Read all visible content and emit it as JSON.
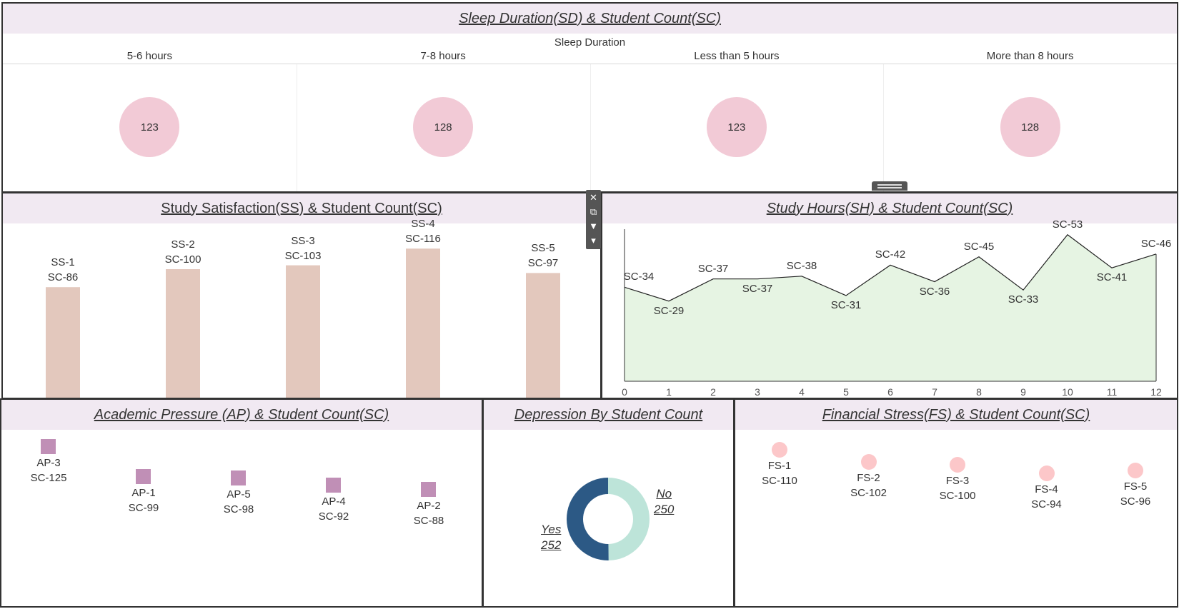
{
  "colors": {
    "title_bar": "#f1e9f2",
    "sleep_circle": "#f2cad6",
    "ss_bar": "#e3c8bd",
    "sh_area_fill": "#e6f4e3",
    "ap_square": "#c08fb6",
    "fs_circle": "#fcc7c9",
    "dep_yes": "#2c5985",
    "dep_no": "#bde4d9"
  },
  "toolbar": {
    "close_icon": "✕",
    "popout_icon": "⧉",
    "filter_icon": "▼",
    "more_icon": "▾"
  },
  "chart_data": [
    {
      "id": "sleep",
      "type": "scatter",
      "title": "Sleep Duration(SD) & Student Count(SC)",
      "header": "Sleep Duration",
      "categories": [
        "5-6 hours",
        "7-8 hours",
        "Less than 5 hours",
        "More than 8 hours"
      ],
      "values": [
        123,
        128,
        123,
        128
      ]
    },
    {
      "id": "ss",
      "type": "bar",
      "title": "Study Satisfaction(SS) & Student Count(SC)",
      "categories": [
        "SS-1",
        "SS-2",
        "SS-3",
        "SS-4",
        "SS-5"
      ],
      "values": [
        86,
        100,
        103,
        116,
        97
      ],
      "value_labels": [
        "SC-86",
        "SC-100",
        "SC-103",
        "SC-116",
        "SC-97"
      ],
      "ylim": [
        0,
        130
      ]
    },
    {
      "id": "sh",
      "type": "area",
      "title": "Study Hours(SH) & Student Count(SC)",
      "x": [
        0,
        1,
        2,
        3,
        4,
        5,
        6,
        7,
        8,
        9,
        10,
        11,
        12
      ],
      "values": [
        34,
        29,
        37,
        37,
        38,
        31,
        42,
        36,
        45,
        33,
        53,
        41,
        46
      ],
      "value_labels": [
        "SC-34",
        "SC-29",
        "SC-37",
        "SC-37",
        "SC-38",
        "SC-31",
        "SC-42",
        "SC-36",
        "SC-45",
        "SC-33",
        "SC-53",
        "SC-41",
        "SC-46"
      ],
      "ylim": [
        0,
        55
      ]
    },
    {
      "id": "ap",
      "type": "scatter",
      "title": "Academic Pressure (AP) & Student Count(SC)",
      "categories": [
        "AP-3",
        "AP-1",
        "AP-5",
        "AP-4",
        "AP-2"
      ],
      "values": [
        125,
        99,
        98,
        92,
        88
      ],
      "value_labels": [
        "SC-125",
        "SC-99",
        "SC-98",
        "SC-92",
        "SC-88"
      ]
    },
    {
      "id": "dep",
      "type": "pie",
      "title": "Depression By Student Count",
      "categories": [
        "Yes",
        "No"
      ],
      "values": [
        252,
        250
      ]
    },
    {
      "id": "fs",
      "type": "scatter",
      "title": "Financial Stress(FS) & Student Count(SC)",
      "categories": [
        "FS-1",
        "FS-2",
        "FS-3",
        "FS-4",
        "FS-5"
      ],
      "values": [
        110,
        102,
        100,
        94,
        96
      ],
      "value_labels": [
        "SC-110",
        "SC-102",
        "SC-100",
        "SC-94",
        "SC-96"
      ]
    }
  ]
}
